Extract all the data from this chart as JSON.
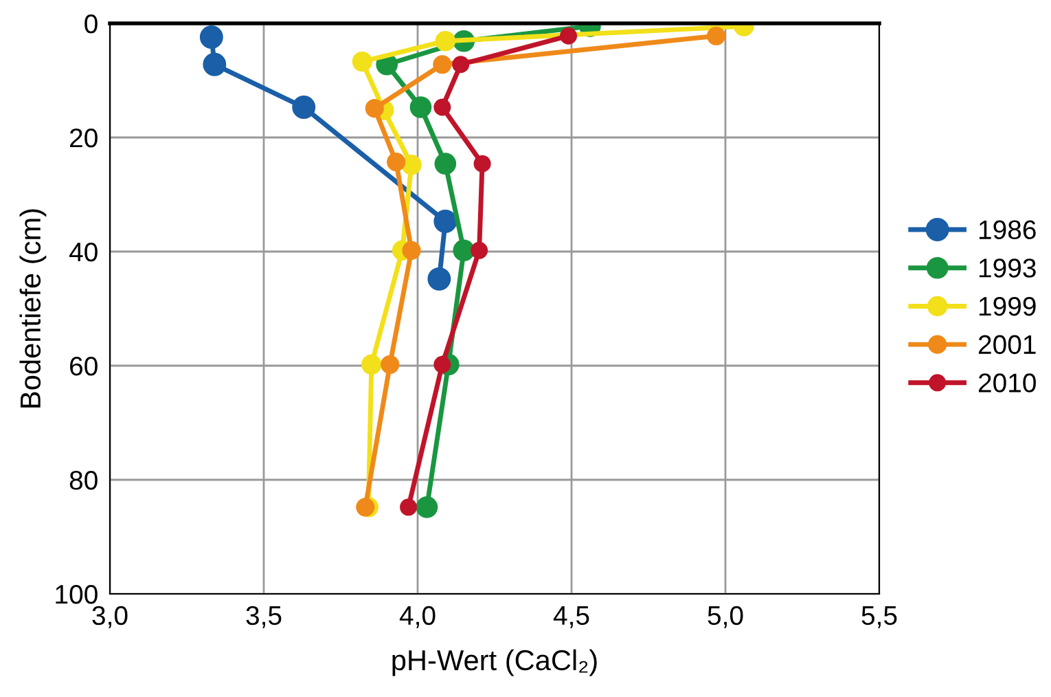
{
  "chart_data": {
    "type": "line",
    "xlabel": "pH-Wert (CaCl₂)",
    "ylabel": "Bodentiefe (cm)",
    "xlim": [
      3.0,
      5.5
    ],
    "xticks": [
      {
        "value": 3.0,
        "label": "3,0"
      },
      {
        "value": 3.5,
        "label": "3,5"
      },
      {
        "value": 4.0,
        "label": "4,0"
      },
      {
        "value": 4.5,
        "label": "4,5"
      },
      {
        "value": 5.0,
        "label": "5,0"
      },
      {
        "value": 5.5,
        "label": "5,5"
      }
    ],
    "ylim": [
      100,
      0
    ],
    "yticks": [
      0,
      20,
      40,
      60,
      80,
      100
    ],
    "grid": true,
    "legend": "right",
    "marker": "circle",
    "line_style": "solid",
    "series": [
      {
        "name": "1986",
        "color": "#1a5fa8",
        "x": [
          3.33,
          3.34,
          3.63,
          4.09,
          4.07
        ],
        "values": [
          2.4,
          7.2,
          14.7,
          34.7,
          44.8
        ]
      },
      {
        "name": "1993",
        "color": "#1a9641",
        "x": [
          4.56,
          4.15,
          3.9,
          4.01,
          4.09,
          4.15,
          4.1,
          4.03
        ],
        "values": [
          0.5,
          3.1,
          7.2,
          14.7,
          24.6,
          39.8,
          59.8,
          84.8
        ]
      },
      {
        "name": "1999",
        "color": "#f2e01a",
        "x": [
          5.06,
          4.09,
          3.82,
          3.89,
          3.98,
          3.95,
          3.85,
          3.84
        ],
        "values": [
          0.5,
          3.1,
          6.7,
          15.2,
          24.8,
          39.8,
          59.8,
          84.8
        ]
      },
      {
        "name": "2001",
        "color": "#ef8a1a",
        "x": [
          4.97,
          4.08,
          3.86,
          3.93,
          3.98,
          3.91,
          3.83
        ],
        "values": [
          2.2,
          7.2,
          14.9,
          24.3,
          39.8,
          59.8,
          84.8
        ]
      },
      {
        "name": "2010",
        "color": "#c0142a",
        "x": [
          4.49,
          4.14,
          4.08,
          4.21,
          4.2,
          4.08,
          3.97
        ],
        "values": [
          2.2,
          7.2,
          14.7,
          24.6,
          39.8,
          59.8,
          84.8
        ]
      }
    ]
  }
}
